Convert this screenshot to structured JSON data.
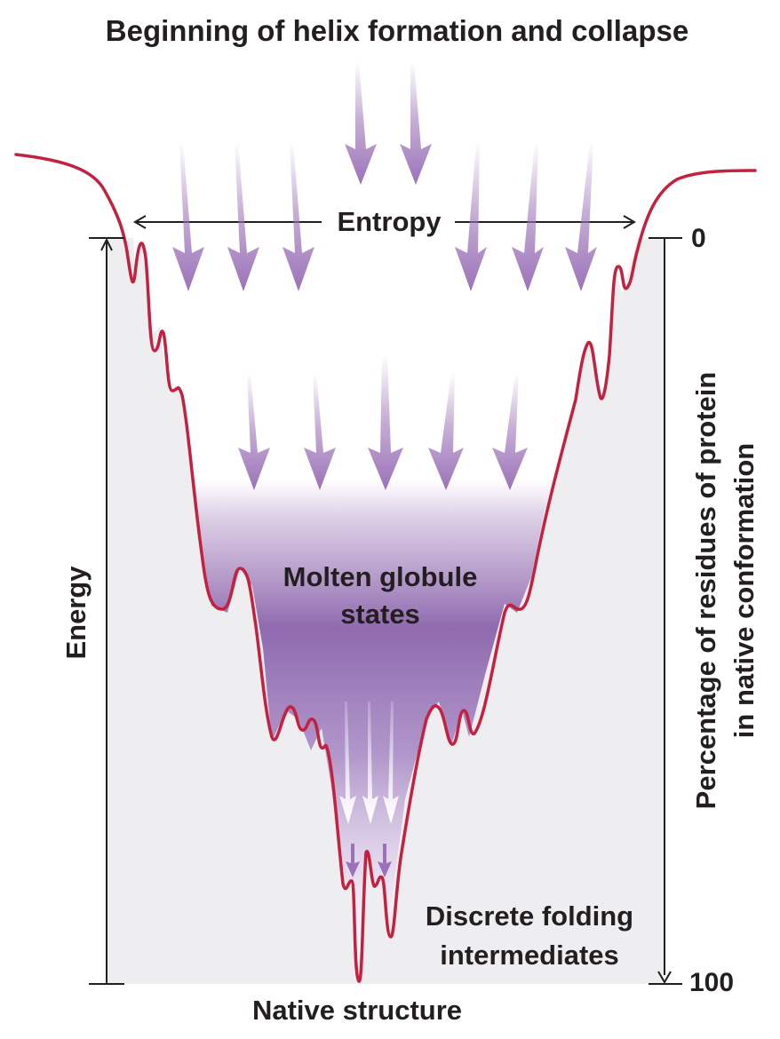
{
  "title": "Beginning of helix formation and collapse",
  "entropy_label": "Entropy",
  "energy_label": "Energy",
  "right_axis": {
    "line1": "Percentage of residues of protein",
    "line2": "in native conformation",
    "tick_top": "0",
    "tick_bottom": "100"
  },
  "molten_label": {
    "line1": "Molten globule",
    "line2": "states"
  },
  "intermediates_label": {
    "line1": "Discrete folding",
    "line2": "intermediates"
  },
  "native_label": "Native structure",
  "colors": {
    "curve": "#c4203f",
    "funnel_bg": "#eeeef0",
    "arrow": "#9b72b8",
    "purple_fill": "#9a74b5",
    "text": "#231f20"
  }
}
